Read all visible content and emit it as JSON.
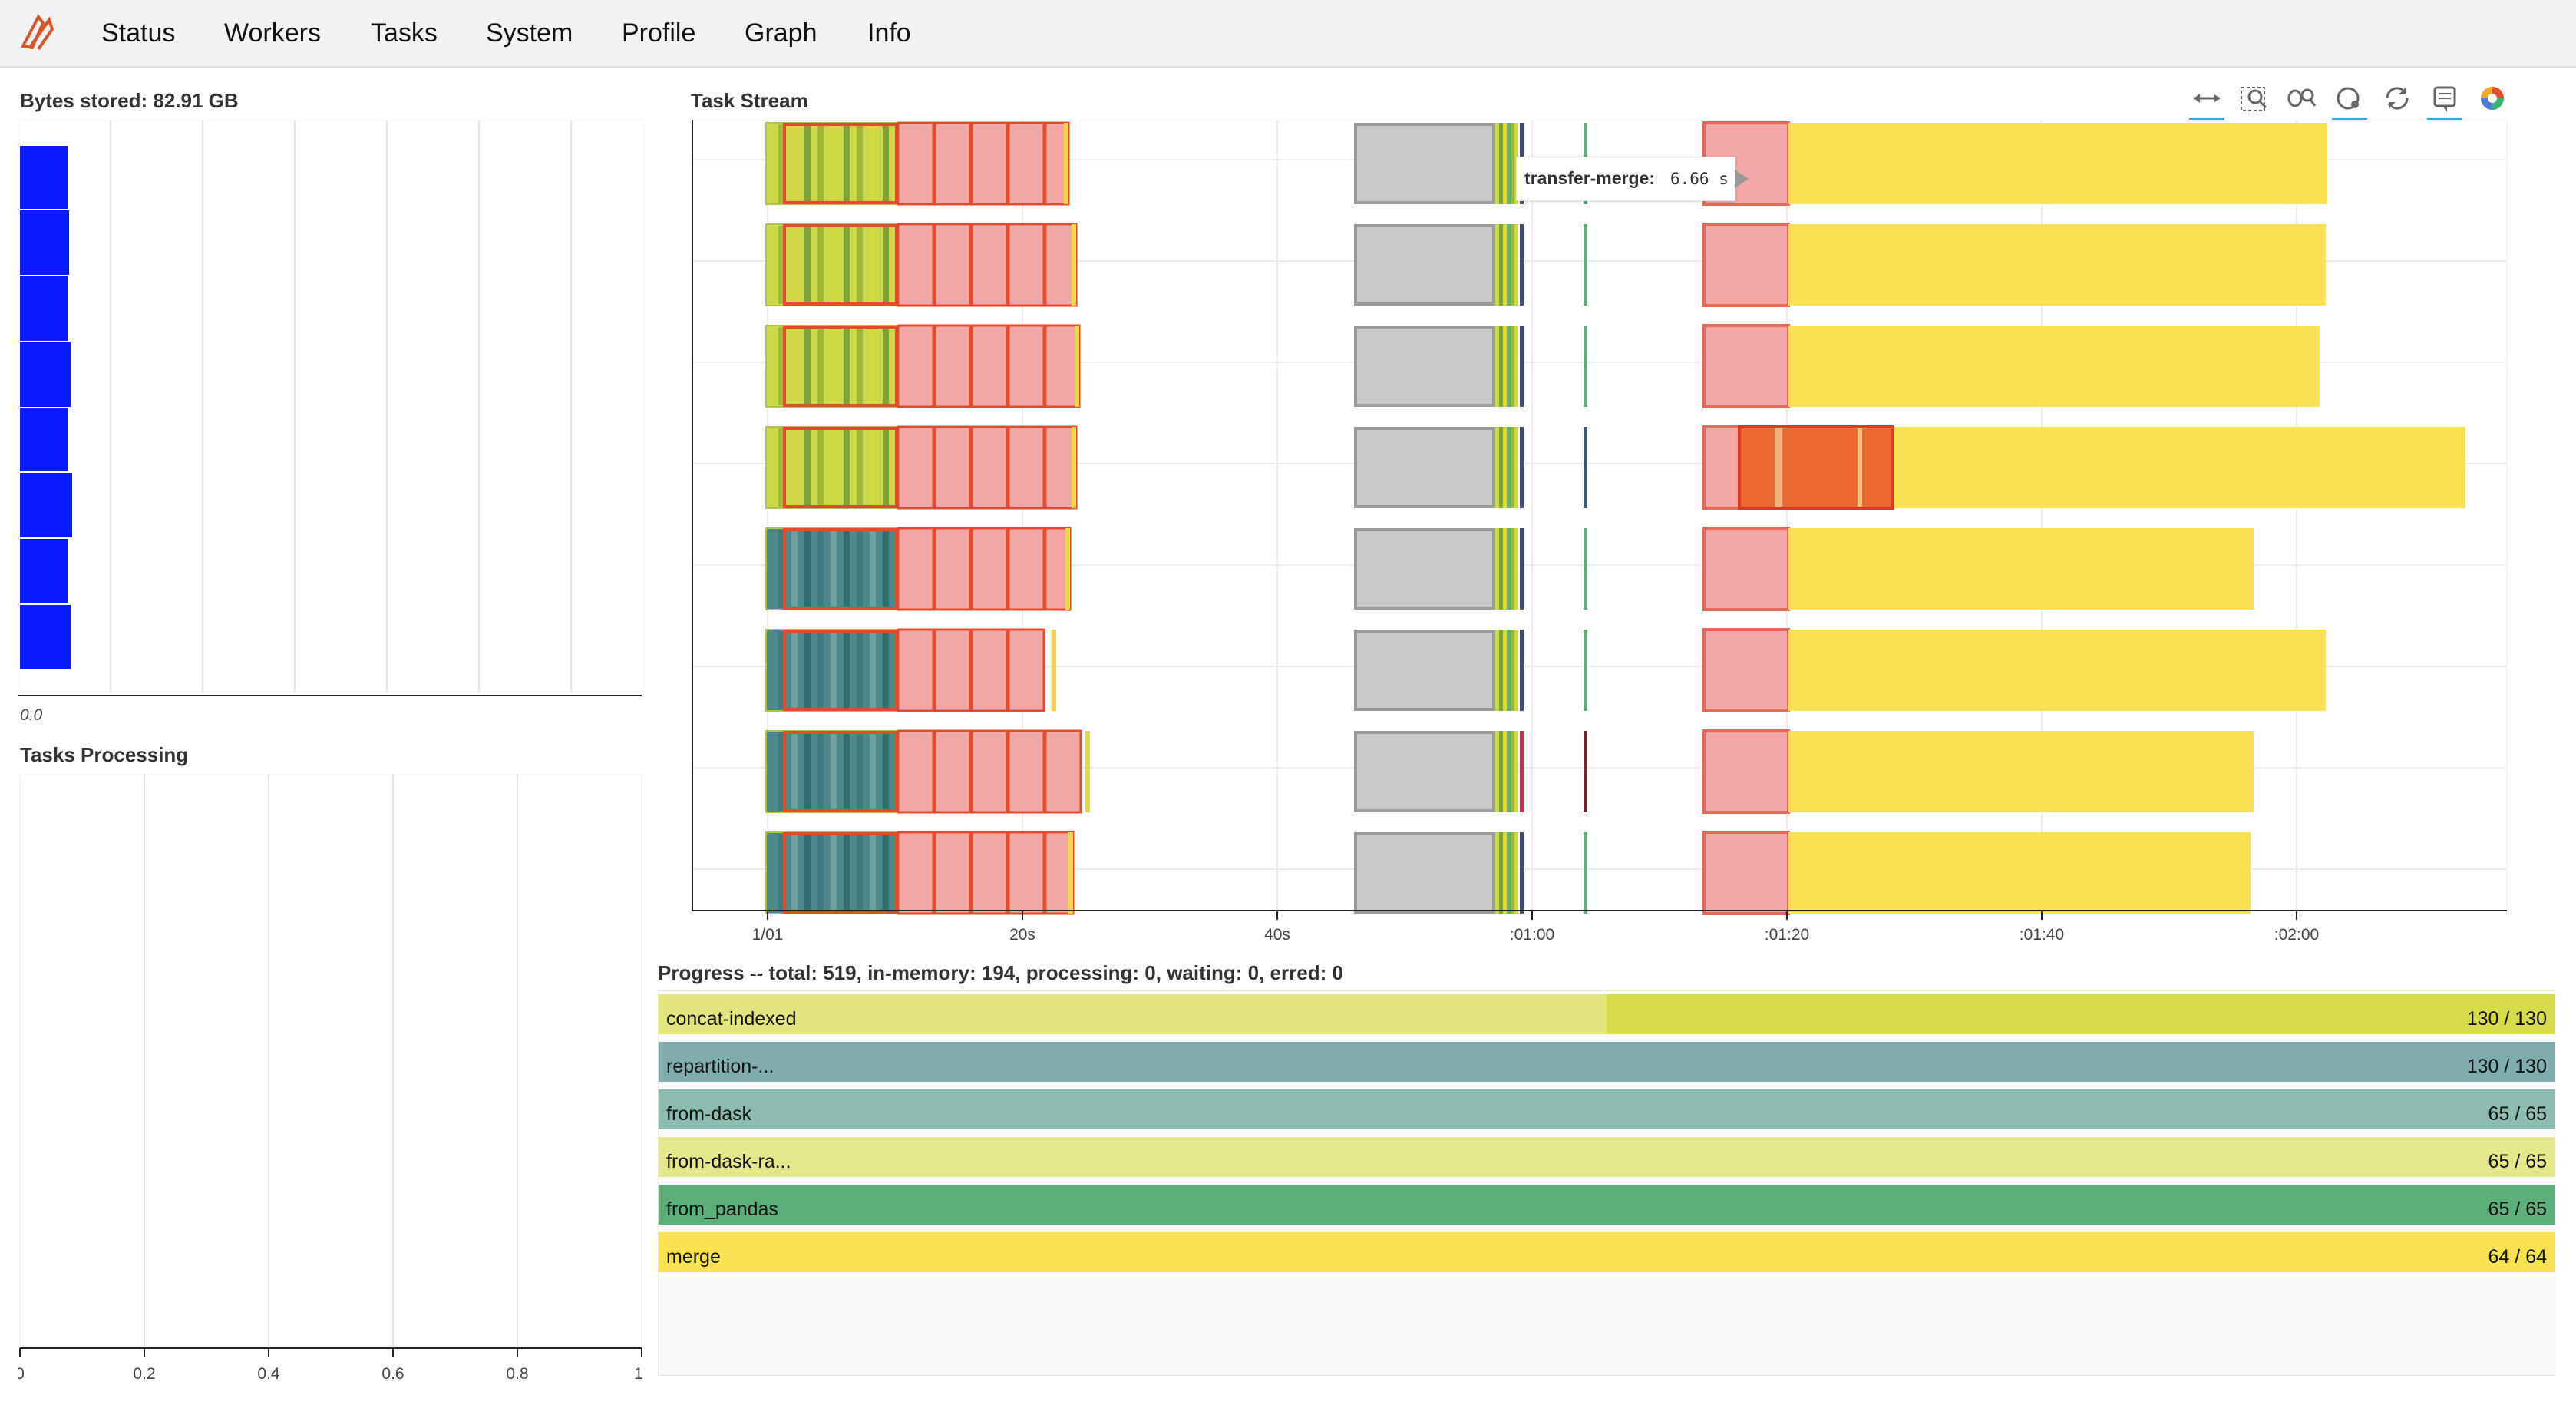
{
  "nav": {
    "items": [
      "Status",
      "Workers",
      "Tasks",
      "System",
      "Profile",
      "Graph",
      "Info"
    ]
  },
  "bytes_panel": {
    "title": "Bytes stored: 82.91 GB",
    "axis_label": "0.0"
  },
  "tasks_processing": {
    "title": "Tasks Processing",
    "ticks": [
      "0",
      "0.2",
      "0.4",
      "0.6",
      "0.8",
      "1"
    ]
  },
  "task_stream": {
    "title": "Task Stream",
    "xticks": [
      "1/01",
      "20s",
      "40s",
      ":01:00",
      ":01:20",
      ":01:40",
      ":02:00"
    ]
  },
  "tooltip": {
    "label": "transfer-merge:",
    "value": "6.66 s"
  },
  "toolbar": {
    "tools": [
      "pan-icon",
      "box-zoom-icon",
      "wheel-zoom-icon",
      "hover-icon",
      "reset-icon",
      "save-icon",
      "bokeh-logo-icon"
    ]
  },
  "progress": {
    "title": "Progress -- total: 519, in-memory: 194, processing: 0, waiting: 0, erred: 0",
    "rows": [
      {
        "name": "concat-indexed",
        "count": "130 / 130",
        "light": "#e2e57d",
        "dark": "#d6dc4a",
        "memory_fraction": 0.5
      },
      {
        "name": "repartition-...",
        "count": "130 / 130",
        "light": "#7fadae",
        "dark": "#7fadae",
        "memory_fraction": 0
      },
      {
        "name": "from-dask",
        "count": "65 / 65",
        "light": "#8bbcaf",
        "dark": "#8bbcaf",
        "memory_fraction": 0
      },
      {
        "name": "from-dask-ra...",
        "count": "65 / 65",
        "light": "#e4e88a",
        "dark": "#e4e88a",
        "memory_fraction": 0
      },
      {
        "name": "from_pandas",
        "count": "65 / 65",
        "light": "#5aaf7b",
        "dark": "#5aaf7b",
        "memory_fraction": 0
      },
      {
        "name": "merge",
        "count": "64 / 64",
        "light": "#f9e24f",
        "dark": "#f9e24f",
        "memory_fraction": 0
      }
    ]
  },
  "colors": {
    "bytes_bar": "#0a1cff",
    "compute_pink": "#f2a6a6",
    "compute_border": "#e64a2e",
    "transfer_gray": "#c9c9c9",
    "merge_yellow": "#f9e24f",
    "teal": "#4a8a8c",
    "green_line": "#5aaf7b"
  }
}
